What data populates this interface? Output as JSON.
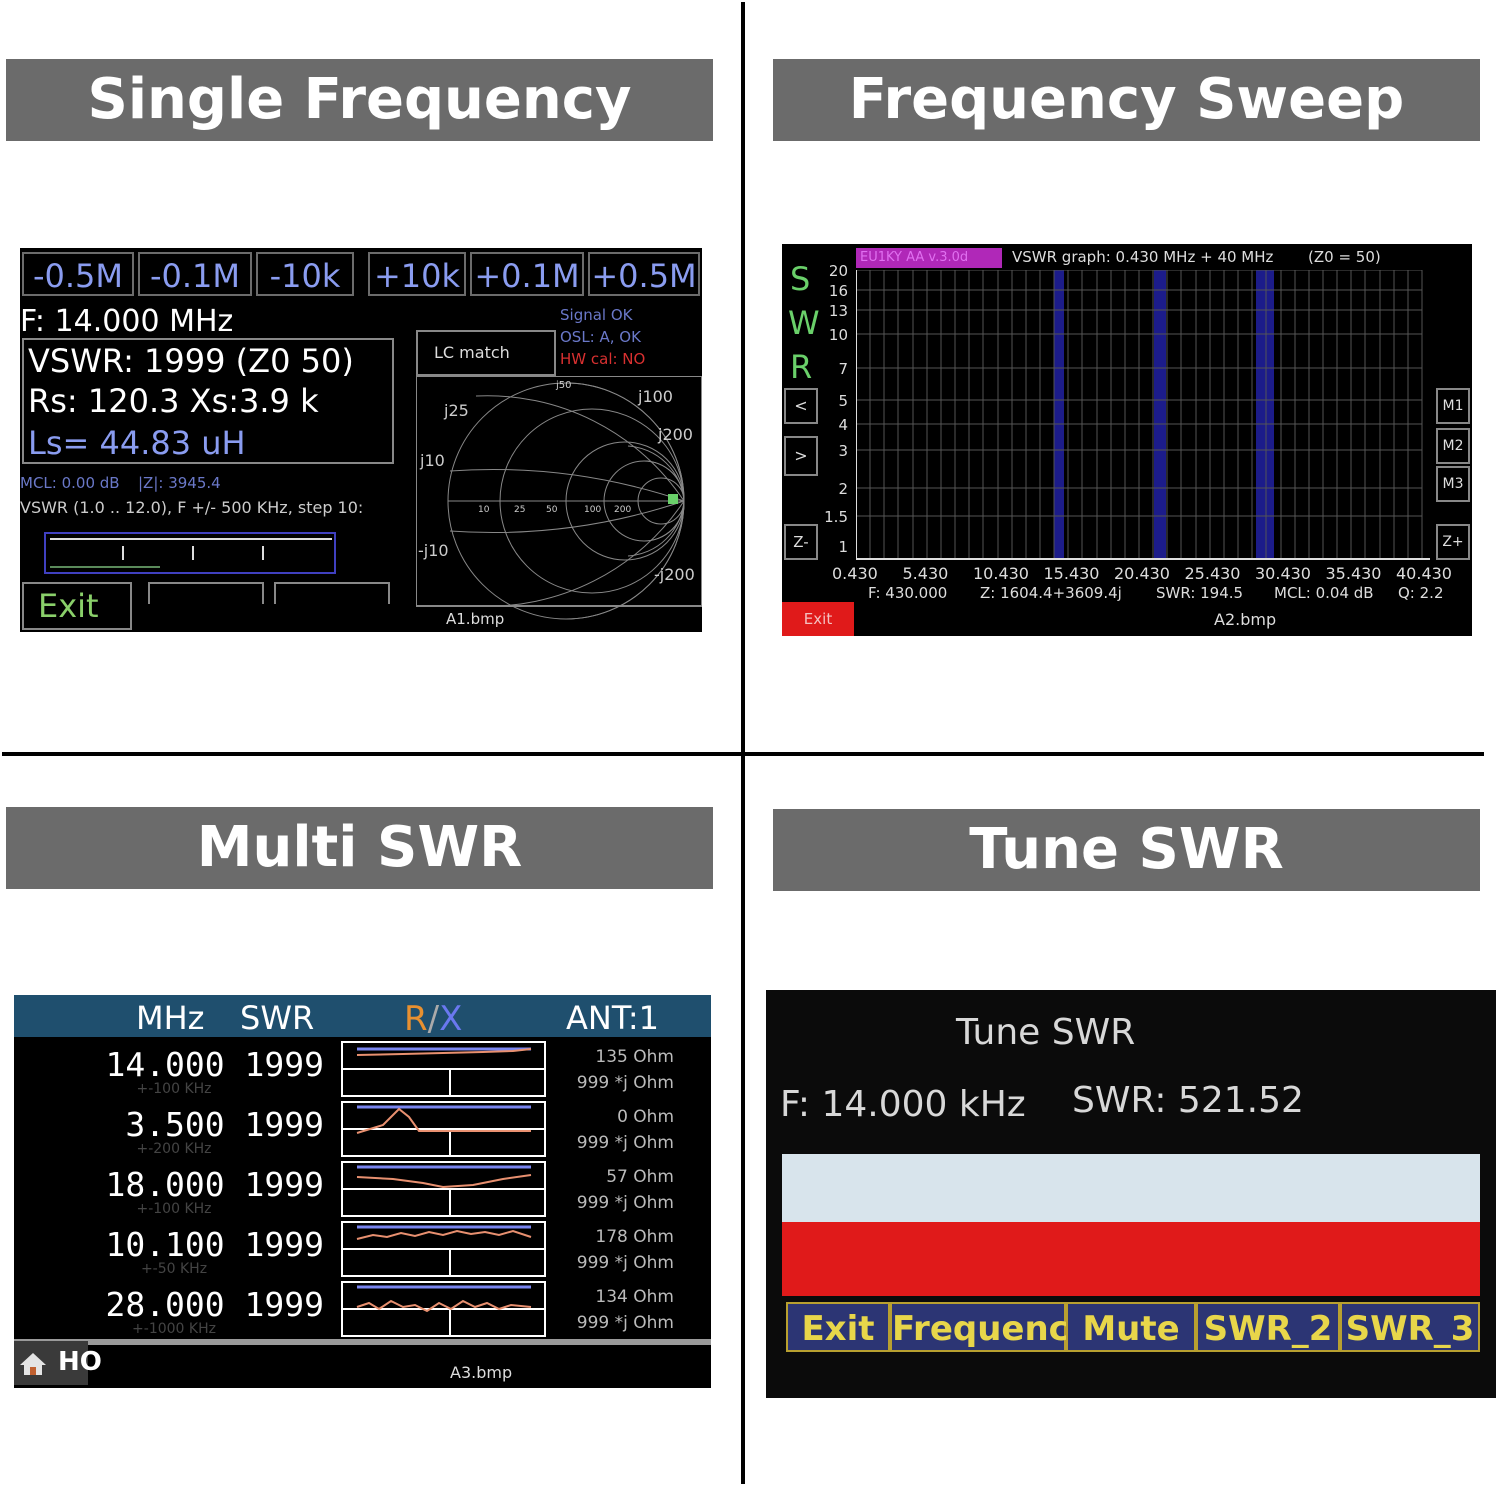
{
  "panels": {
    "single": {
      "heading": "Single Frequency",
      "buttons": [
        "-0.5M",
        "-0.1M",
        "-10k",
        "+10k",
        "+0.1M",
        "+0.5M"
      ],
      "freq": "F: 14.000 MHz",
      "vswr": "VSWR: 1999 (Z0 50)",
      "rs": "Rs: 120.3 Xs:3.9 k",
      "ls": "Ls= 44.83 uH",
      "lc_match": "LC match",
      "status": [
        "Signal OK",
        "OSL: A, OK",
        "HW cal: NO"
      ],
      "mcl": "MCL: 0.00 dB",
      "z": "|Z|: 3945.4",
      "vswr_range": "VSWR (1.0 .. 12.0), F +/- 500 KHz, step 10:",
      "exit": "Exit",
      "smith_labels": {
        "j50": "j50",
        "j25": "j25",
        "j100": "j100",
        "j200": "j200",
        "j10": "j10",
        "mj10": "-j10",
        "mj200": "-j200",
        "r10": "10",
        "r25": "25",
        "r50": "50",
        "r100": "100",
        "r200": "200"
      },
      "caption": "A1.bmp"
    },
    "sweep": {
      "heading": "Frequency Sweep",
      "version": "EU1KY AA v.3.0d",
      "title": "VSWR graph: 0.430 MHz + 40 MHz",
      "z0": "(Z0 = 50)",
      "swr_letters": [
        "S",
        "W",
        "R"
      ],
      "nav_left": "<",
      "nav_right": ">",
      "zoom_minus": "Z-",
      "zoom_plus": "Z+",
      "markers": [
        "M1",
        "M2",
        "M3"
      ],
      "y_ticks": [
        "20",
        "16",
        "13",
        "10",
        "7",
        "5",
        "4",
        "3",
        "2",
        "1.5",
        "1"
      ],
      "x_ticks": [
        "0.430",
        "5.430",
        "10.430",
        "15.430",
        "20.430",
        "25.430",
        "30.430",
        "35.430",
        "40.430"
      ],
      "readout": {
        "f": "F: 430.000",
        "z": "Z: 1604.4+3609.4j",
        "swr": "SWR: 194.5",
        "mcl": "MCL: 0.04 dB",
        "q": "Q: 2.2"
      },
      "exit": "Exit",
      "caption": "A2.bmp"
    },
    "multi": {
      "heading": "Multi SWR",
      "header": {
        "mhz": "MHz",
        "swr": "SWR",
        "r": "R",
        "slash": "/",
        "x": "X",
        "ant": "ANT:1"
      },
      "rows": [
        {
          "freq": "14.000 1999",
          "span": "+-100 KHz",
          "r": "135 Ohm",
          "x": "999 *j Ohm"
        },
        {
          "freq": "3.500 1999",
          "span": "+-200 KHz",
          "r": "0 Ohm",
          "x": "999 *j Ohm"
        },
        {
          "freq": "18.000 1999",
          "span": "+-100 KHz",
          "r": "57 Ohm",
          "x": "999 *j Ohm"
        },
        {
          "freq": "10.100 1999",
          "span": "+-50 KHz",
          "r": "178 Ohm",
          "x": "999 *j Ohm"
        },
        {
          "freq": "28.000 1999",
          "span": "+-1000 KHz",
          "r": "134 Ohm",
          "x": "999 *j Ohm"
        }
      ],
      "home": "HO",
      "caption": "A3.bmp"
    },
    "tune": {
      "heading": "Tune SWR",
      "title": "Tune SWR",
      "freq": "F: 14.000 kHz",
      "swr": "SWR: 521.52",
      "buttons": [
        "Exit",
        "Frequency",
        "Mute",
        "SWR_2",
        "SWR_3"
      ],
      "colors": {
        "bar_top": "#d8e4ec",
        "bar_bottom": "#e01a1a"
      }
    }
  }
}
